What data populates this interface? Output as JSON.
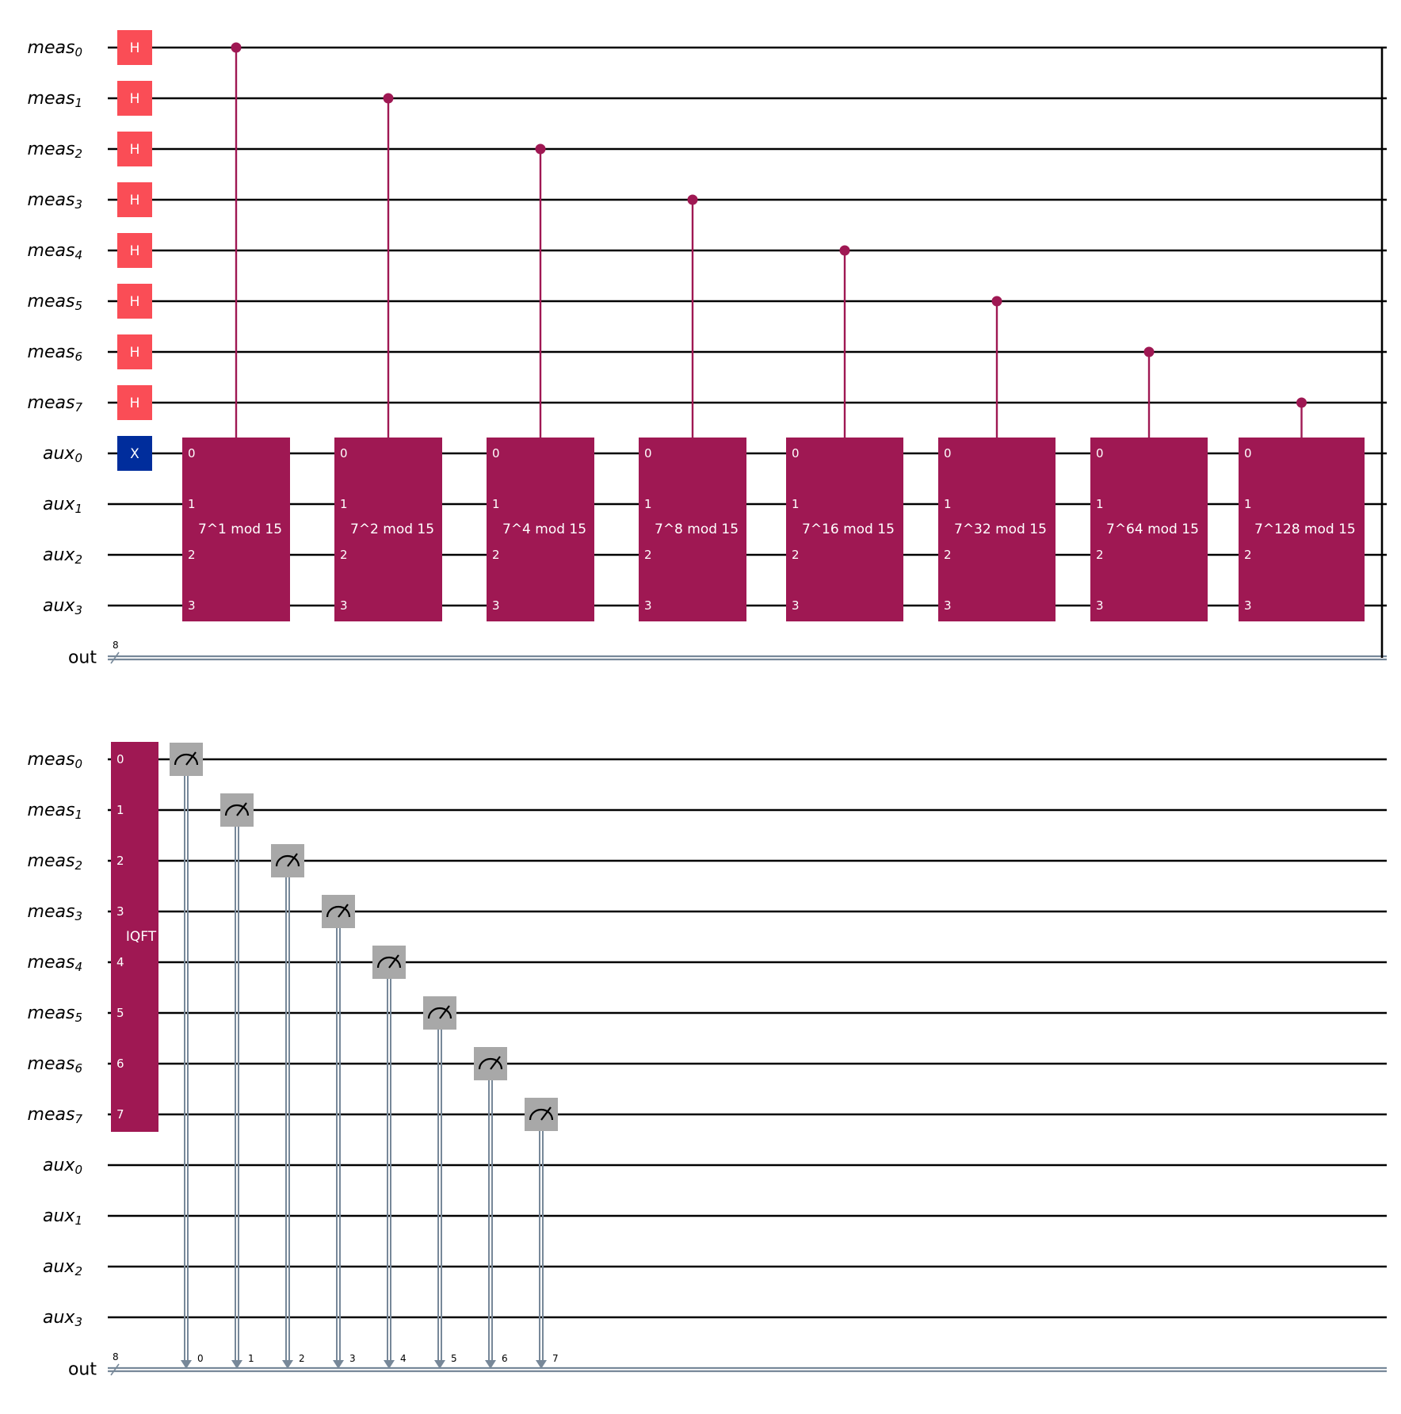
{
  "colors": {
    "h_gate": "#fa4d56",
    "x_gate": "#002d9c",
    "controlled_gate": "#9f1853",
    "measure_gate": "#a8a8a8",
    "classical_wire": "#778899",
    "wire": "#000000"
  },
  "panels": [
    {
      "name": "top",
      "qubits": [
        {
          "base": "meas",
          "sub": "0"
        },
        {
          "base": "meas",
          "sub": "1"
        },
        {
          "base": "meas",
          "sub": "2"
        },
        {
          "base": "meas",
          "sub": "3"
        },
        {
          "base": "meas",
          "sub": "4"
        },
        {
          "base": "meas",
          "sub": "5"
        },
        {
          "base": "meas",
          "sub": "6"
        },
        {
          "base": "meas",
          "sub": "7"
        },
        {
          "base": "aux",
          "sub": "0"
        },
        {
          "base": "aux",
          "sub": "1"
        },
        {
          "base": "aux",
          "sub": "2"
        },
        {
          "base": "aux",
          "sub": "3"
        }
      ],
      "classical": {
        "label": "out",
        "width": "8"
      },
      "single_gates": [
        {
          "label": "H",
          "wire": 0,
          "kind": "h_gate"
        },
        {
          "label": "H",
          "wire": 1,
          "kind": "h_gate"
        },
        {
          "label": "H",
          "wire": 2,
          "kind": "h_gate"
        },
        {
          "label": "H",
          "wire": 3,
          "kind": "h_gate"
        },
        {
          "label": "H",
          "wire": 4,
          "kind": "h_gate"
        },
        {
          "label": "H",
          "wire": 5,
          "kind": "h_gate"
        },
        {
          "label": "H",
          "wire": 6,
          "kind": "h_gate"
        },
        {
          "label": "H",
          "wire": 7,
          "kind": "h_gate"
        },
        {
          "label": "X",
          "wire": 8,
          "kind": "x_gate"
        }
      ],
      "controlled_ops": [
        {
          "label": "7^1 mod 15",
          "control": 0,
          "pins": [
            "0",
            "1",
            "2",
            "3"
          ]
        },
        {
          "label": "7^2 mod 15",
          "control": 1,
          "pins": [
            "0",
            "1",
            "2",
            "3"
          ]
        },
        {
          "label": "7^4 mod 15",
          "control": 2,
          "pins": [
            "0",
            "1",
            "2",
            "3"
          ]
        },
        {
          "label": "7^8 mod 15",
          "control": 3,
          "pins": [
            "0",
            "1",
            "2",
            "3"
          ]
        },
        {
          "label": "7^16 mod 15",
          "control": 4,
          "pins": [
            "0",
            "1",
            "2",
            "3"
          ]
        },
        {
          "label": "7^32 mod 15",
          "control": 5,
          "pins": [
            "0",
            "1",
            "2",
            "3"
          ]
        },
        {
          "label": "7^64 mod 15",
          "control": 6,
          "pins": [
            "0",
            "1",
            "2",
            "3"
          ]
        },
        {
          "label": "7^128 mod 15",
          "control": 7,
          "pins": [
            "0",
            "1",
            "2",
            "3"
          ]
        }
      ]
    },
    {
      "name": "bottom",
      "qubits": [
        {
          "base": "meas",
          "sub": "0"
        },
        {
          "base": "meas",
          "sub": "1"
        },
        {
          "base": "meas",
          "sub": "2"
        },
        {
          "base": "meas",
          "sub": "3"
        },
        {
          "base": "meas",
          "sub": "4"
        },
        {
          "base": "meas",
          "sub": "5"
        },
        {
          "base": "meas",
          "sub": "6"
        },
        {
          "base": "meas",
          "sub": "7"
        },
        {
          "base": "aux",
          "sub": "0"
        },
        {
          "base": "aux",
          "sub": "1"
        },
        {
          "base": "aux",
          "sub": "2"
        },
        {
          "base": "aux",
          "sub": "3"
        }
      ],
      "classical": {
        "label": "out",
        "width": "8"
      },
      "iqft": {
        "label": "IQFT",
        "pins": [
          "0",
          "1",
          "2",
          "3",
          "4",
          "5",
          "6",
          "7"
        ]
      },
      "measurements": [
        {
          "wire": 0,
          "bit": "0"
        },
        {
          "wire": 1,
          "bit": "1"
        },
        {
          "wire": 2,
          "bit": "2"
        },
        {
          "wire": 3,
          "bit": "3"
        },
        {
          "wire": 4,
          "bit": "4"
        },
        {
          "wire": 5,
          "bit": "5"
        },
        {
          "wire": 6,
          "bit": "6"
        },
        {
          "wire": 7,
          "bit": "7"
        }
      ]
    }
  ]
}
